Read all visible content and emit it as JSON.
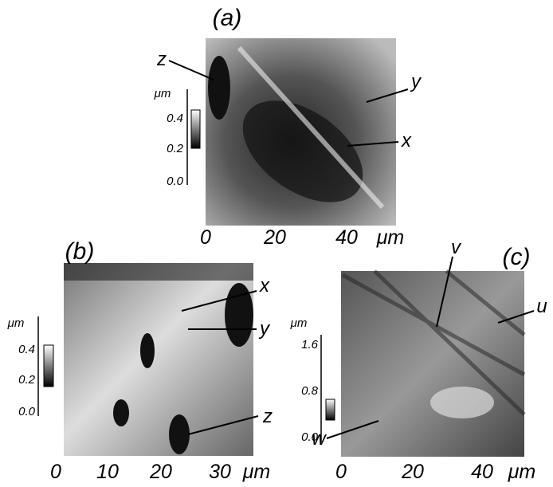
{
  "panels": [
    {
      "label": "(a)",
      "colorbar_unit": "μm",
      "colorbar_ticks": [
        "0.4",
        "0.2",
        "0.0"
      ],
      "x_ticks": [
        "0",
        "20",
        "40"
      ],
      "x_unit": "μm",
      "annotations": [
        "z",
        "y",
        "x"
      ]
    },
    {
      "label": "(b)",
      "colorbar_unit": "μm",
      "colorbar_ticks": [
        "0.4",
        "0.2",
        "0.0"
      ],
      "x_ticks": [
        "0",
        "10",
        "20",
        "30"
      ],
      "x_unit": "μm",
      "annotations": [
        "x",
        "y",
        "z"
      ]
    },
    {
      "label": "(c)",
      "colorbar_unit": "μm",
      "colorbar_ticks": [
        "1.6",
        "0.8",
        "0.0"
      ],
      "x_ticks": [
        "0",
        "20",
        "40"
      ],
      "x_unit": "μm",
      "annotations": [
        "v",
        "u",
        "w"
      ]
    }
  ]
}
